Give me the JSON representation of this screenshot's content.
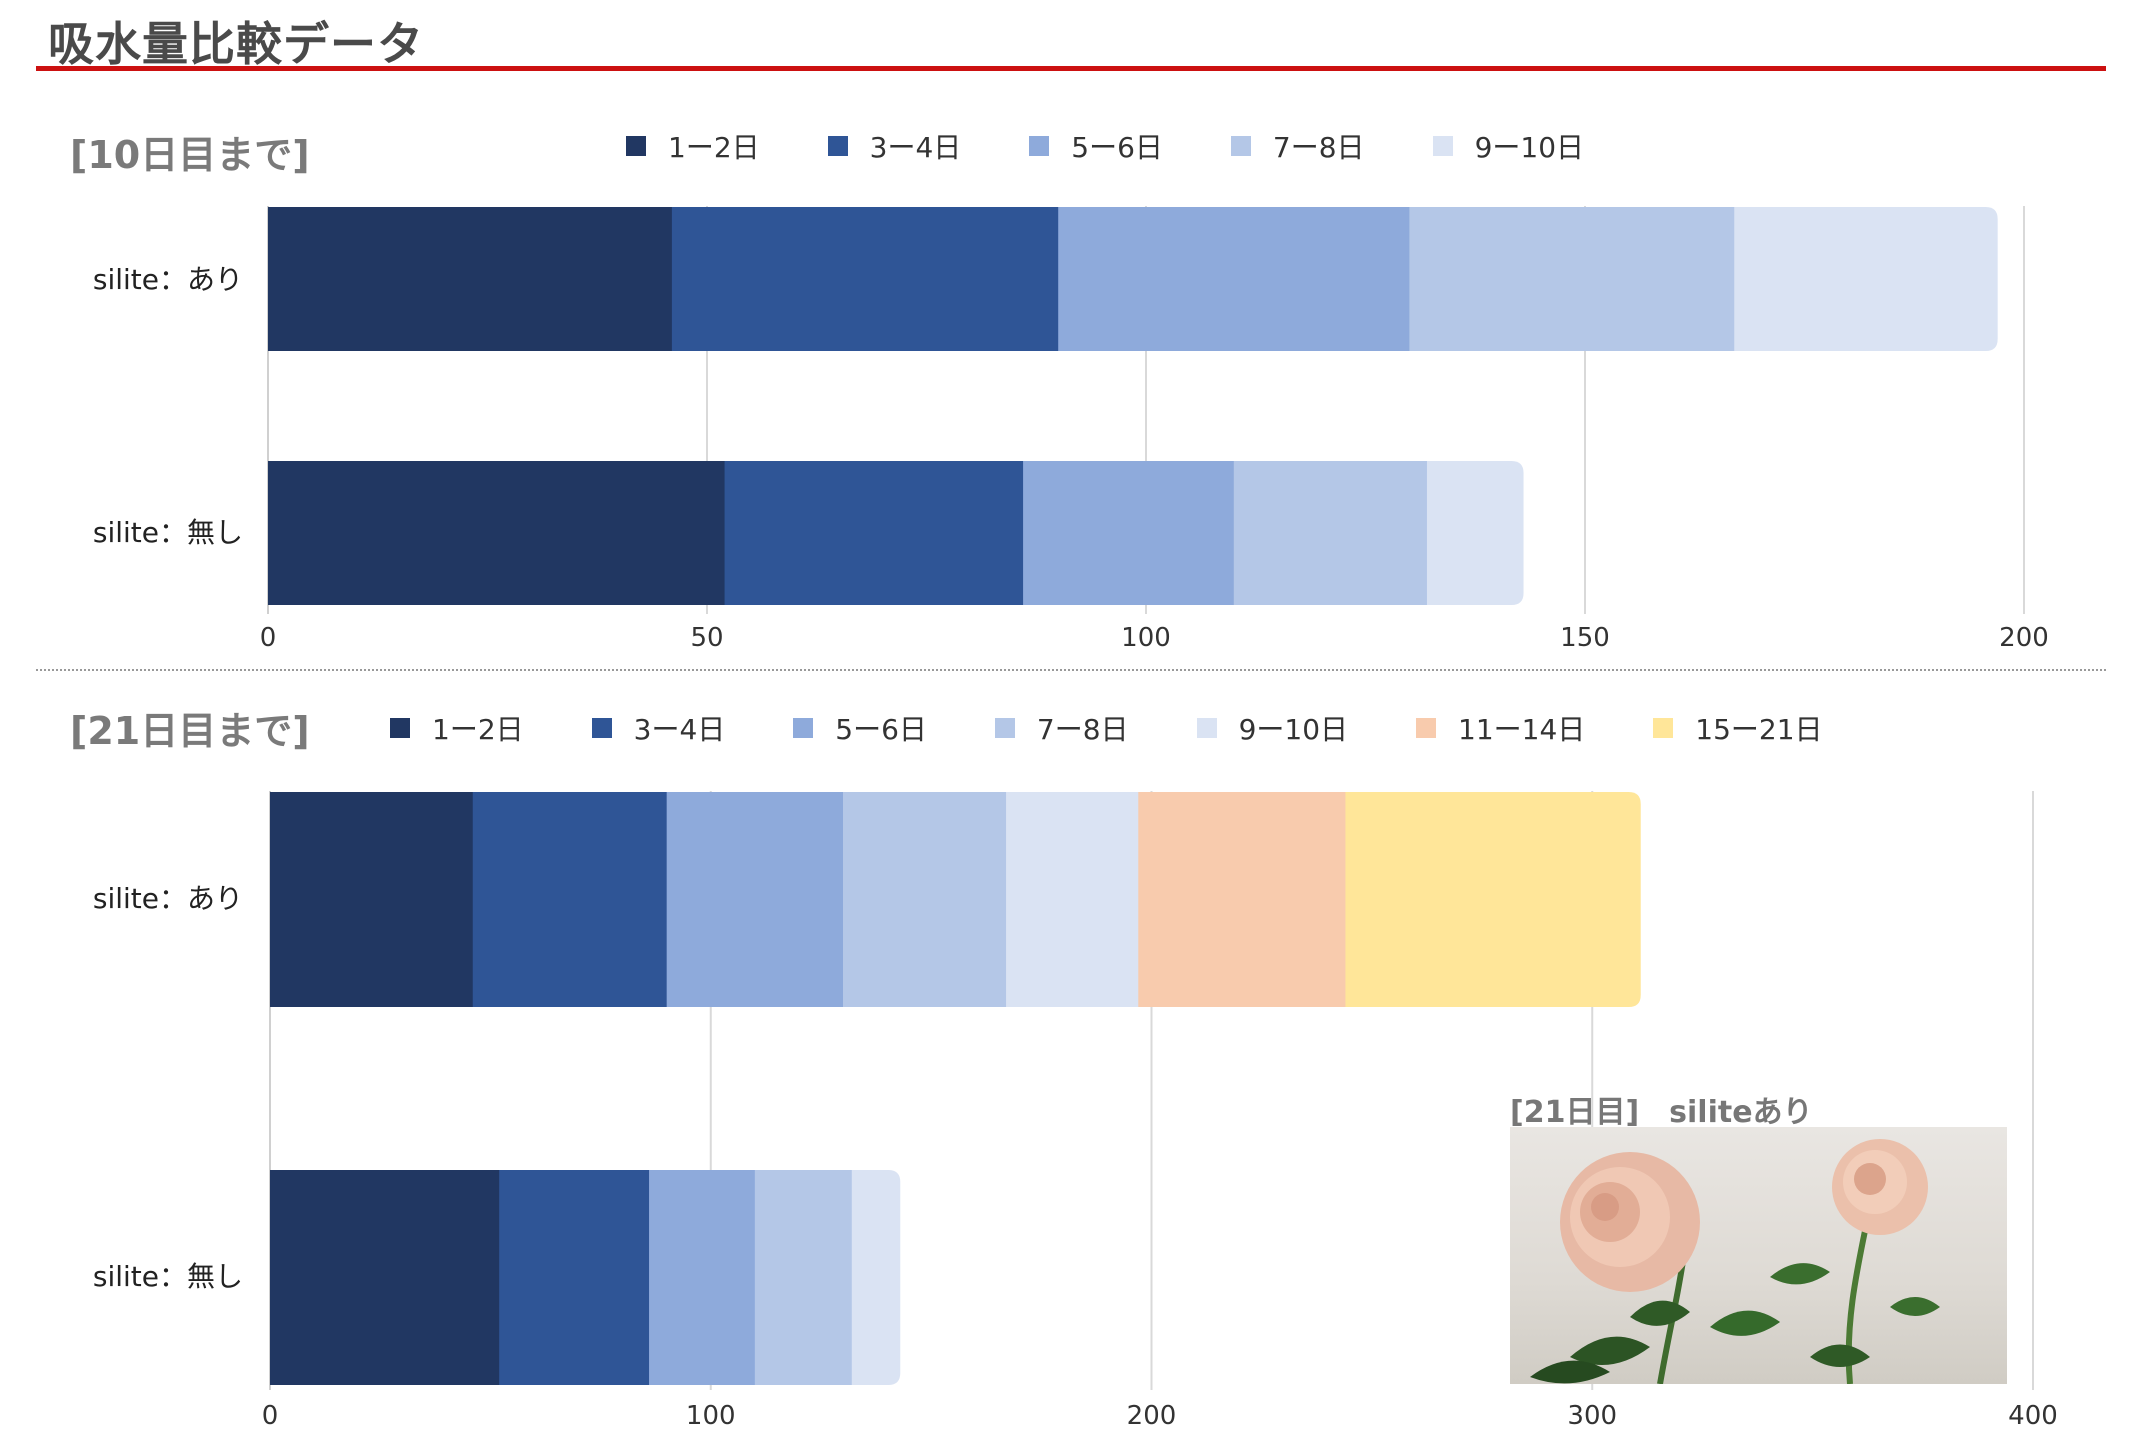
{
  "page": {
    "title": "吸水量比較データ"
  },
  "colors": {
    "accent_rule": "#cc1111",
    "seg": [
      "#213762",
      "#2f5596",
      "#8eaadb",
      "#b4c7e7",
      "#dae3f3",
      "#f8cbad",
      "#ffe699"
    ]
  },
  "chart_data": [
    {
      "type": "bar",
      "orientation": "horizontal",
      "stacked": true,
      "title": "[10日目まで]",
      "categories": [
        "silite：あり",
        "silite：無し"
      ],
      "series": [
        {
          "name": "1ー2日",
          "values": [
            46,
            52
          ]
        },
        {
          "name": "3ー4日",
          "values": [
            44,
            34
          ]
        },
        {
          "name": "5ー6日",
          "values": [
            40,
            24
          ]
        },
        {
          "name": "7ー8日",
          "values": [
            37,
            22
          ]
        },
        {
          "name": "9ー10日",
          "values": [
            30,
            11
          ]
        }
      ],
      "xlim": [
        0,
        200
      ],
      "xticks": [
        "0",
        "50",
        "100",
        "150",
        "200"
      ],
      "grid": true,
      "legend": "top"
    },
    {
      "type": "bar",
      "orientation": "horizontal",
      "stacked": true,
      "title": "[21日目まで]",
      "categories": [
        "silite：あり",
        "silite：無し"
      ],
      "series": [
        {
          "name": "1ー2日",
          "values": [
            46,
            52
          ]
        },
        {
          "name": "3ー4日",
          "values": [
            44,
            34
          ]
        },
        {
          "name": "5ー6日",
          "values": [
            40,
            24
          ]
        },
        {
          "name": "7ー8日",
          "values": [
            37,
            22
          ]
        },
        {
          "name": "9ー10日",
          "values": [
            30,
            11
          ]
        },
        {
          "name": "11ー14日",
          "values": [
            47,
            0
          ]
        },
        {
          "name": "15ー21日",
          "values": [
            67,
            0
          ]
        }
      ],
      "xlim": [
        0,
        400
      ],
      "xticks": [
        "0",
        "100",
        "200",
        "300",
        "400"
      ],
      "grid": true,
      "legend": "top"
    }
  ],
  "photo": {
    "caption": "[21日目]　siliteあり"
  }
}
